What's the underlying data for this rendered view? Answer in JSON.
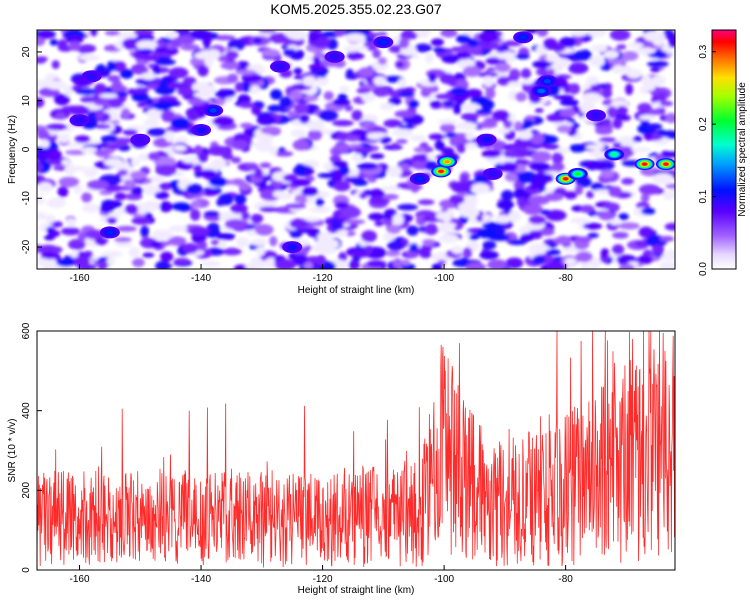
{
  "title": "KOM5.2025.355.02.23.G07",
  "chart_data": [
    {
      "type": "heatmap",
      "xlabel": "Height of straight line (km)",
      "ylabel": "Frequency (Hz)",
      "xlim": [
        -167,
        -62
      ],
      "ylim": [
        -24.5,
        24.5
      ],
      "xticks": [
        -160,
        -140,
        -120,
        -100,
        -80
      ],
      "yticks": [
        -20,
        -10,
        0,
        10,
        20
      ],
      "colorbar": {
        "label": "Normalized spectral amplitude",
        "range": [
          0.0,
          0.33
        ],
        "ticks": [
          0.0,
          0.1,
          0.2,
          0.3
        ]
      },
      "hotspots": [
        {
          "x": -100.5,
          "y": -4.5,
          "amp": 0.33
        },
        {
          "x": -99.5,
          "y": -2.5,
          "amp": 0.3
        },
        {
          "x": -80,
          "y": -6,
          "amp": 0.33
        },
        {
          "x": -78,
          "y": -5,
          "amp": 0.22
        },
        {
          "x": -72,
          "y": -1,
          "amp": 0.2
        },
        {
          "x": -67,
          "y": -3,
          "amp": 0.33
        },
        {
          "x": -63.5,
          "y": -3,
          "amp": 0.33
        },
        {
          "x": -84,
          "y": 12,
          "amp": 0.14
        },
        {
          "x": -83,
          "y": 14,
          "amp": 0.13
        },
        {
          "x": -138,
          "y": 8,
          "amp": 0.13
        },
        {
          "x": -140,
          "y": 4,
          "amp": 0.11
        },
        {
          "x": -155,
          "y": -17,
          "amp": 0.12
        },
        {
          "x": -158,
          "y": 15,
          "amp": 0.1
        },
        {
          "x": -110,
          "y": 22,
          "amp": 0.12
        },
        {
          "x": -125,
          "y": -20,
          "amp": 0.11
        },
        {
          "x": -104,
          "y": -6,
          "amp": 0.12
        },
        {
          "x": -93,
          "y": 2,
          "amp": 0.11
        },
        {
          "x": -92,
          "y": -5,
          "amp": 0.1
        },
        {
          "x": -87,
          "y": 23,
          "amp": 0.12
        },
        {
          "x": -160,
          "y": 6,
          "amp": 0.1
        },
        {
          "x": -127,
          "y": 17,
          "amp": 0.1
        },
        {
          "x": -118,
          "y": 19,
          "amp": 0.1
        },
        {
          "x": -75,
          "y": 7,
          "amp": 0.1
        },
        {
          "x": -150,
          "y": 2,
          "amp": 0.09
        }
      ]
    },
    {
      "type": "line",
      "xlabel": "Height of straight line (km)",
      "ylabel": "SNR (10 * v/v)",
      "xlim": [
        -167,
        -62
      ],
      "ylim": [
        0,
        600
      ],
      "xticks": [
        -160,
        -140,
        -120,
        -100,
        -80
      ],
      "yticks": [
        0,
        200,
        400,
        600
      ],
      "series": [
        {
          "color": "#ff2a2a",
          "sampling": "dense noisy trace",
          "baseline": [
            [
              -167,
              130
            ],
            [
              -120,
              125
            ],
            [
              -104,
              140
            ],
            [
              -100,
              300
            ],
            [
              -97,
              220
            ],
            [
              -90,
              170
            ],
            [
              -80,
              200
            ],
            [
              -70,
              270
            ],
            [
              -62,
              300
            ]
          ]
        }
      ],
      "peaks": [
        {
          "x": -100.5,
          "y": 565
        },
        {
          "x": -99.8,
          "y": 500
        },
        {
          "x": -77.5,
          "y": 575
        },
        {
          "x": -69,
          "y": 580
        },
        {
          "x": -66,
          "y": 598
        },
        {
          "x": -64,
          "y": 595
        },
        {
          "x": -72,
          "y": 520
        },
        {
          "x": -139,
          "y": 408
        },
        {
          "x": -142,
          "y": 400
        },
        {
          "x": -153,
          "y": 405
        },
        {
          "x": -136,
          "y": 418
        },
        {
          "x": -123,
          "y": 412
        }
      ]
    }
  ]
}
